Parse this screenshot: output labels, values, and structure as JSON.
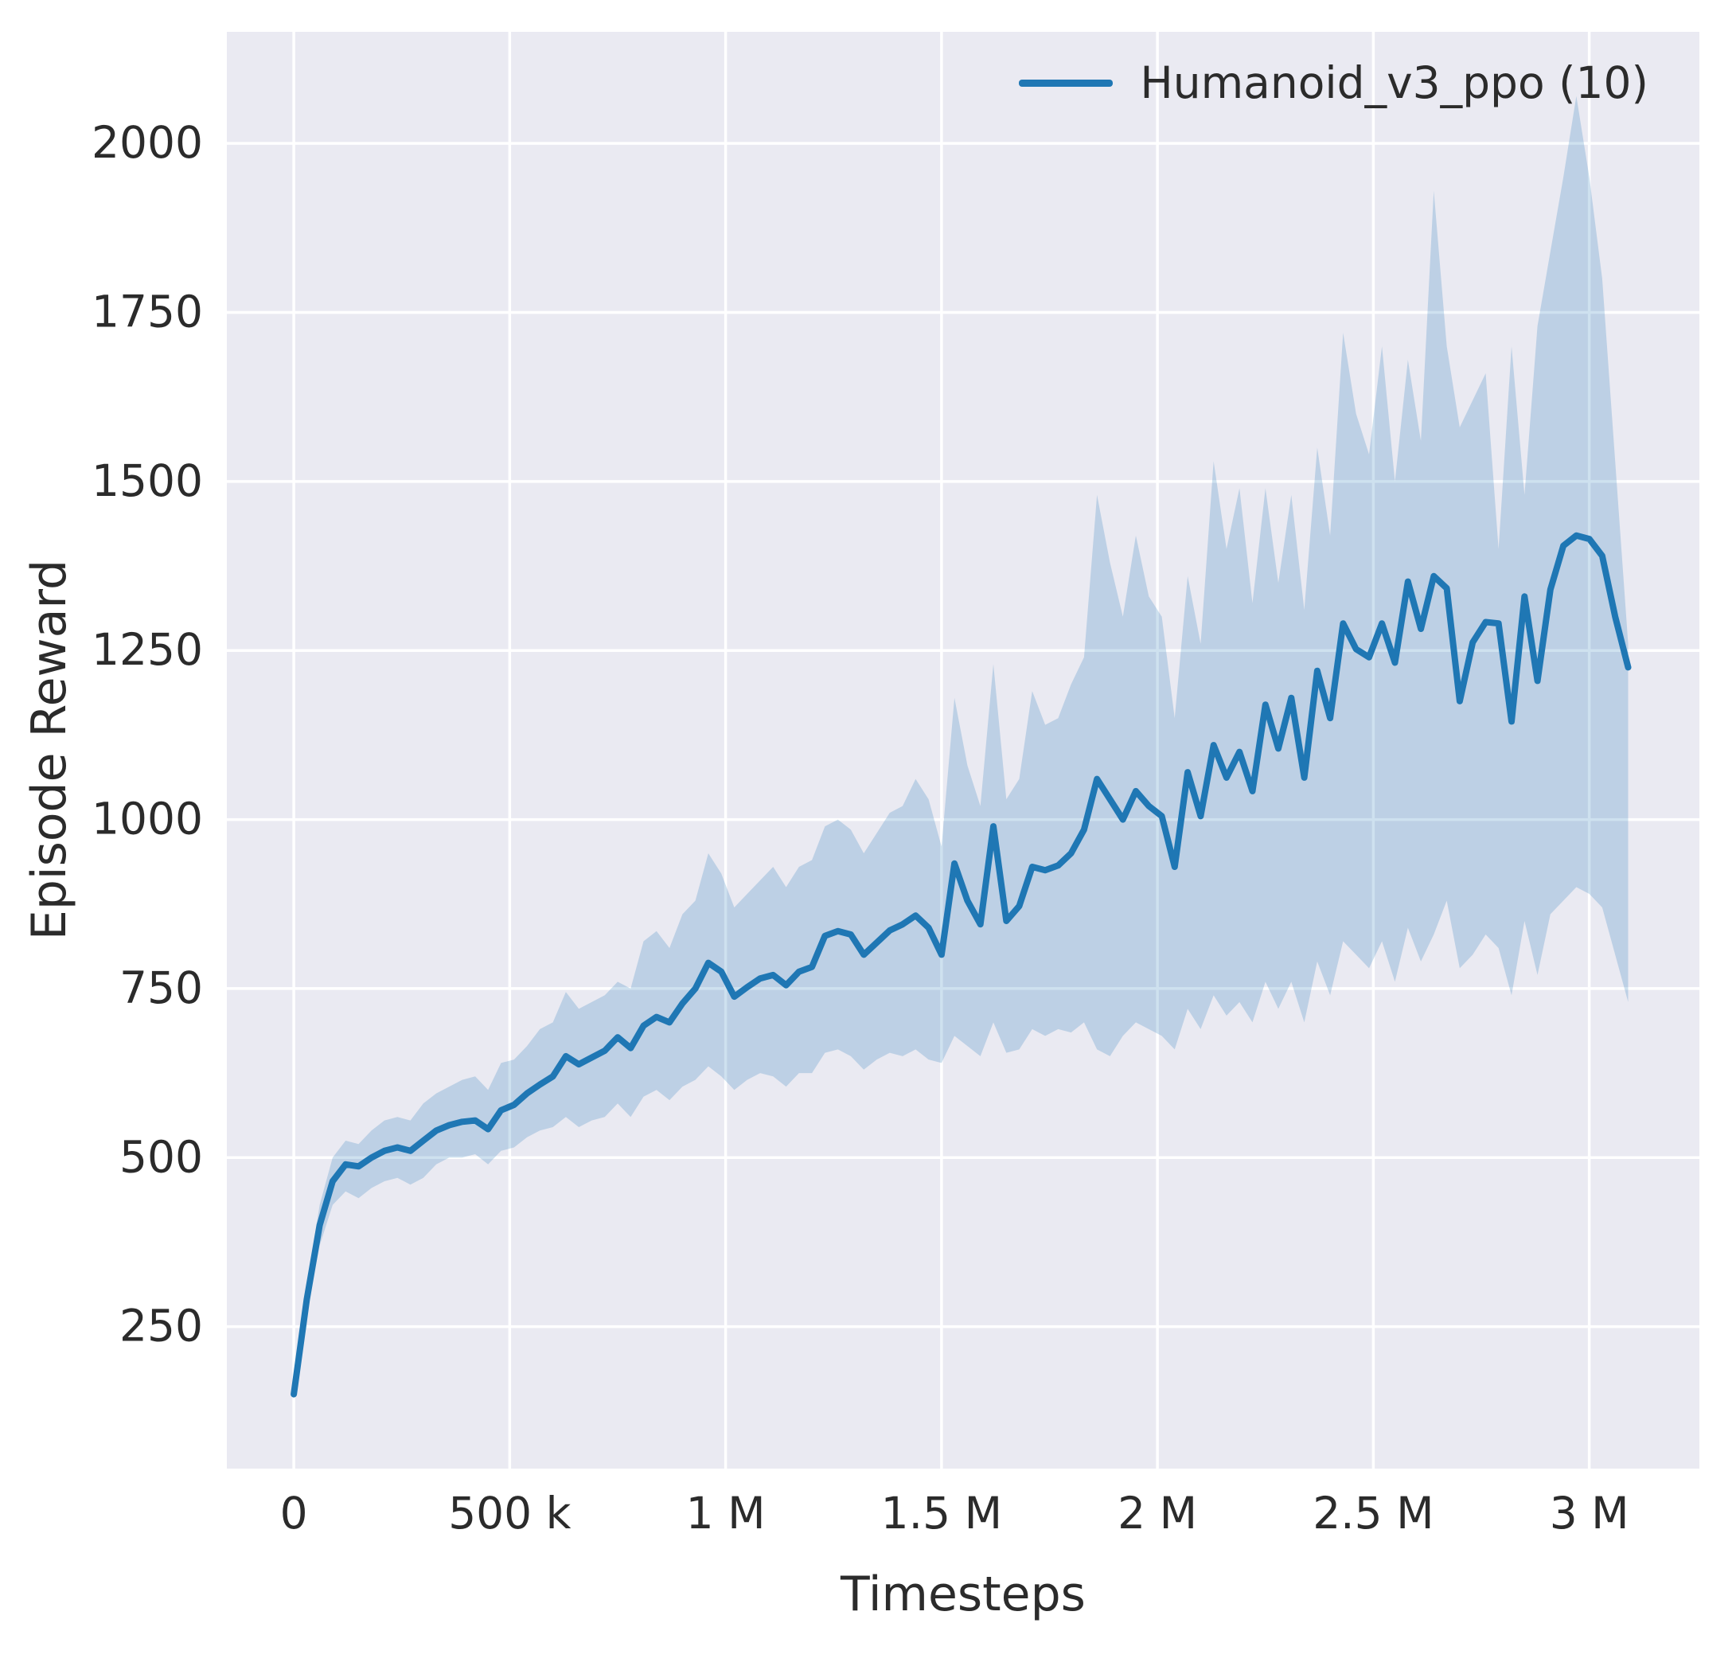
{
  "figure": {
    "bg_color": "#ffffff",
    "plot_bg_color": "#eaeaf2",
    "grid_color": "#ffffff",
    "line_color": "#1f77b4",
    "band_color": "#1f77b4",
    "band_opacity": 0.22,
    "tick_color": "#2b2b2b"
  },
  "chart_data": {
    "type": "line",
    "title": "",
    "xlabel": "Timesteps",
    "ylabel": "Episode Reward",
    "grid": true,
    "legend_position": "upper right",
    "legend": [
      {
        "label": "Humanoid_v3_ppo (10)"
      }
    ],
    "xlim": [
      -155000,
      3255000
    ],
    "ylim": [
      40,
      2165
    ],
    "x_ticks": {
      "values": [
        0,
        500000,
        1000000,
        1500000,
        2000000,
        2500000,
        3000000
      ],
      "labels": [
        "0",
        "500 k",
        "1 M",
        "1.5 M",
        "2 M",
        "2.5 M",
        "3 M"
      ]
    },
    "y_ticks": {
      "values": [
        250,
        500,
        750,
        1000,
        1250,
        1500,
        1750,
        2000
      ],
      "labels": [
        "250",
        "500",
        "750",
        "1000",
        "1250",
        "1500",
        "1750",
        "2000"
      ]
    },
    "series": [
      {
        "name": "Humanoid_v3_ppo (10)",
        "x": [
          0,
          30000,
          60000,
          90000,
          120000,
          150000,
          180000,
          210000,
          240000,
          270000,
          300000,
          330000,
          360000,
          390000,
          420000,
          450000,
          480000,
          510000,
          540000,
          570000,
          600000,
          630000,
          660000,
          690000,
          720000,
          750000,
          780000,
          810000,
          840000,
          870000,
          900000,
          930000,
          960000,
          990000,
          1020000,
          1050000,
          1080000,
          1110000,
          1140000,
          1170000,
          1200000,
          1230000,
          1260000,
          1290000,
          1320000,
          1350000,
          1380000,
          1410000,
          1440000,
          1470000,
          1500000,
          1530000,
          1560000,
          1590000,
          1620000,
          1650000,
          1680000,
          1710000,
          1740000,
          1770000,
          1800000,
          1830000,
          1860000,
          1890000,
          1920000,
          1950000,
          1980000,
          2010000,
          2040000,
          2070000,
          2100000,
          2130000,
          2160000,
          2190000,
          2220000,
          2250000,
          2280000,
          2310000,
          2340000,
          2370000,
          2400000,
          2430000,
          2460000,
          2490000,
          2520000,
          2550000,
          2580000,
          2610000,
          2640000,
          2670000,
          2700000,
          2730000,
          2760000,
          2790000,
          2820000,
          2850000,
          2880000,
          2910000,
          2940000,
          2970000,
          3000000,
          3030000,
          3060000,
          3090000
        ],
        "mean": [
          150,
          290,
          400,
          465,
          490,
          487,
          500,
          510,
          515,
          510,
          525,
          540,
          548,
          553,
          555,
          542,
          570,
          578,
          595,
          608,
          620,
          650,
          638,
          648,
          658,
          678,
          662,
          695,
          708,
          700,
          728,
          750,
          788,
          775,
          738,
          752,
          765,
          770,
          755,
          775,
          782,
          828,
          835,
          830,
          800,
          818,
          836,
          845,
          858,
          840,
          800,
          935,
          880,
          845,
          990,
          850,
          872,
          930,
          925,
          932,
          950,
          985,
          1060,
          1030,
          1000,
          1042,
          1020,
          1005,
          930,
          1070,
          1005,
          1110,
          1062,
          1100,
          1042,
          1170,
          1105,
          1180,
          1062,
          1220,
          1150,
          1290,
          1252,
          1240,
          1290,
          1232,
          1352,
          1282,
          1360,
          1342,
          1175,
          1262,
          1292,
          1290,
          1145,
          1330,
          1205,
          1340,
          1405,
          1420,
          1415,
          1390,
          1300,
          1225
        ],
        "lower": [
          150,
          270,
          370,
          430,
          450,
          440,
          455,
          465,
          470,
          460,
          470,
          490,
          500,
          500,
          505,
          490,
          510,
          515,
          530,
          540,
          545,
          560,
          545,
          555,
          560,
          580,
          560,
          590,
          600,
          585,
          605,
          615,
          635,
          620,
          600,
          615,
          625,
          620,
          605,
          625,
          625,
          655,
          660,
          650,
          630,
          645,
          655,
          650,
          660,
          645,
          640,
          680,
          665,
          650,
          700,
          655,
          660,
          690,
          680,
          690,
          685,
          700,
          660,
          650,
          680,
          700,
          690,
          680,
          660,
          720,
          690,
          740,
          710,
          730,
          700,
          760,
          720,
          760,
          700,
          790,
          740,
          820,
          800,
          780,
          820,
          760,
          840,
          790,
          830,
          880,
          780,
          800,
          830,
          810,
          740,
          850,
          770,
          860,
          880,
          900,
          890,
          870,
          800,
          730
        ],
        "upper": [
          150,
          310,
          430,
          500,
          525,
          520,
          540,
          555,
          560,
          555,
          580,
          595,
          605,
          615,
          620,
          600,
          640,
          645,
          665,
          690,
          700,
          745,
          720,
          730,
          740,
          760,
          750,
          820,
          835,
          810,
          860,
          880,
          950,
          920,
          870,
          890,
          910,
          930,
          900,
          930,
          940,
          990,
          1000,
          985,
          950,
          980,
          1010,
          1020,
          1060,
          1030,
          960,
          1180,
          1080,
          1020,
          1230,
          1030,
          1060,
          1190,
          1140,
          1150,
          1200,
          1240,
          1480,
          1380,
          1300,
          1420,
          1330,
          1300,
          1150,
          1360,
          1260,
          1530,
          1400,
          1490,
          1320,
          1490,
          1350,
          1480,
          1310,
          1550,
          1420,
          1720,
          1600,
          1540,
          1700,
          1500,
          1680,
          1560,
          1930,
          1700,
          1580,
          1620,
          1660,
          1400,
          1700,
          1480,
          1730,
          1840,
          1950,
          2070,
          1950,
          1800,
          1530,
          1260
        ]
      }
    ]
  }
}
